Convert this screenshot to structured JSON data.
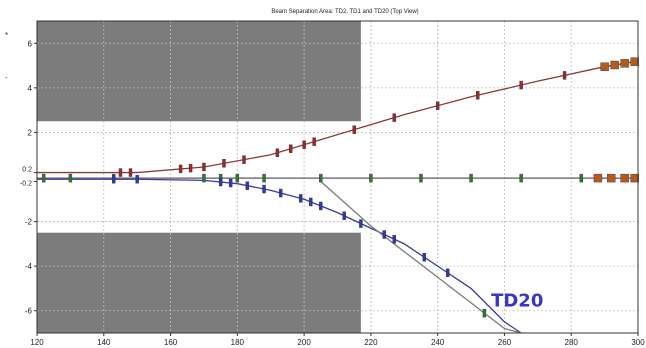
{
  "chart_data": {
    "type": "line",
    "title": "Beam Separation Area: TD2, TD1 and TD20 (Top View)",
    "xlabel": "",
    "ylabel": "",
    "xlim": [
      120,
      300
    ],
    "ylim": [
      -7,
      7
    ],
    "x_ticks": [
      "120",
      "140",
      "160",
      "180",
      "200",
      "220",
      "240",
      "260",
      "280",
      "300"
    ],
    "y_ticks": [
      "6",
      "4",
      "2",
      "0.2",
      "-0.2",
      "-2",
      "-4",
      "-6"
    ],
    "grid": true,
    "shaded_regions": [
      {
        "x": [
          120,
          217
        ],
        "y": [
          2.5,
          7
        ]
      },
      {
        "x": [
          120,
          217
        ],
        "y": [
          -7,
          -2.5
        ]
      }
    ],
    "series": [
      {
        "name": "",
        "color": "#8b3a3a",
        "x": [
          120,
          150,
          170,
          190,
          210,
          230,
          250,
          270,
          290,
          300
        ],
        "y": [
          0.2,
          0.2,
          0.45,
          1.0,
          1.9,
          2.8,
          3.6,
          4.3,
          4.95,
          5.2
        ]
      },
      {
        "name": "",
        "color": "#5a5a6a",
        "x": [
          120,
          140,
          160,
          180,
          200,
          220,
          240,
          260,
          280,
          300
        ],
        "y": [
          -0.05,
          -0.05,
          -0.05,
          -0.05,
          -0.05,
          -0.05,
          -0.05,
          -0.05,
          -0.05,
          -0.05
        ]
      },
      {
        "name": "",
        "color": "#3a3aa0",
        "x": [
          120,
          150,
          170,
          180,
          190,
          200,
          210,
          220,
          230,
          240,
          250,
          260,
          265
        ],
        "y": [
          -0.1,
          -0.1,
          -0.15,
          -0.3,
          -0.6,
          -1.0,
          -1.6,
          -2.3,
          -3.0,
          -4.0,
          -5.0,
          -6.5,
          -7.0
        ]
      },
      {
        "name": "",
        "color": "#7a7a7a",
        "x": [
          205,
          220,
          240,
          260,
          265
        ],
        "y": [
          -0.2,
          -2.2,
          -4.5,
          -6.8,
          -7.0
        ]
      }
    ],
    "annotations": [
      {
        "text": "TD20",
        "x": 256,
        "y": -5.8
      }
    ],
    "side_marks": [
      "*",
      "-"
    ]
  }
}
